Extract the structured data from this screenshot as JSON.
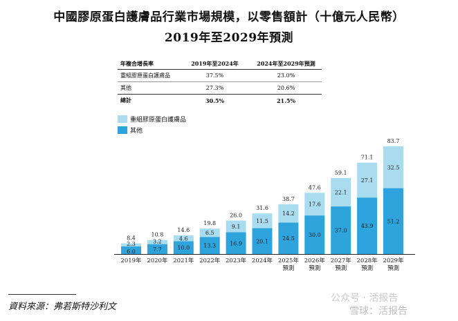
{
  "title_line1": "中國膠原蛋白護膚品行業市場規模，以零售額計（十億元人民幣）",
  "title_line2": "2019年至2029年預測",
  "cagr_table": {
    "header": [
      "年複合增長率",
      "2019年至2024年",
      "2024年至2029年預測"
    ],
    "rows": [
      {
        "label": "重組膠原蛋白護膚品",
        "v1": "37.5%",
        "v2": "23.0%"
      },
      {
        "label": "其他",
        "v1": "27.3%",
        "v2": "20.6%"
      },
      {
        "label": "總計",
        "v1": "30.5%",
        "v2": "21.5%"
      }
    ]
  },
  "legend": {
    "recombinant": "重組膠原蛋白護膚品",
    "other": "其他"
  },
  "colors": {
    "recombinant": "#a9dcef",
    "other": "#2ea3dc"
  },
  "source": "資料來源：弗若斯特沙利文",
  "watermark1": "公众号 · 活报告",
  "watermark2": "雪球：活报告",
  "chart_data": {
    "type": "bar",
    "stacked": true,
    "categories": [
      "2019年",
      "2020年",
      "2021年",
      "2022年",
      "2023年",
      "2024年",
      "2025年",
      "2026年",
      "2027年",
      "2028年",
      "2029年"
    ],
    "category_sublabels": [
      "",
      "",
      "",
      "",
      "",
      "",
      "預測",
      "預測",
      "預測",
      "預測",
      "預測"
    ],
    "series": [
      {
        "name": "其他",
        "values": [
          6.0,
          7.7,
          10.0,
          13.3,
          16.9,
          20.1,
          24.5,
          30.0,
          37.0,
          43.9,
          51.2
        ]
      },
      {
        "name": "重組膠原蛋白護膚品",
        "values": [
          2.3,
          3.2,
          4.6,
          6.5,
          9.1,
          11.5,
          14.2,
          17.6,
          22.1,
          27.1,
          32.5
        ]
      }
    ],
    "totals": [
      8.4,
      10.8,
      14.6,
      19.8,
      26.0,
      31.6,
      38.7,
      47.6,
      59.1,
      71.1,
      83.7
    ],
    "ylim": [
      0,
      85
    ],
    "ylabel": "",
    "xlabel": ""
  }
}
